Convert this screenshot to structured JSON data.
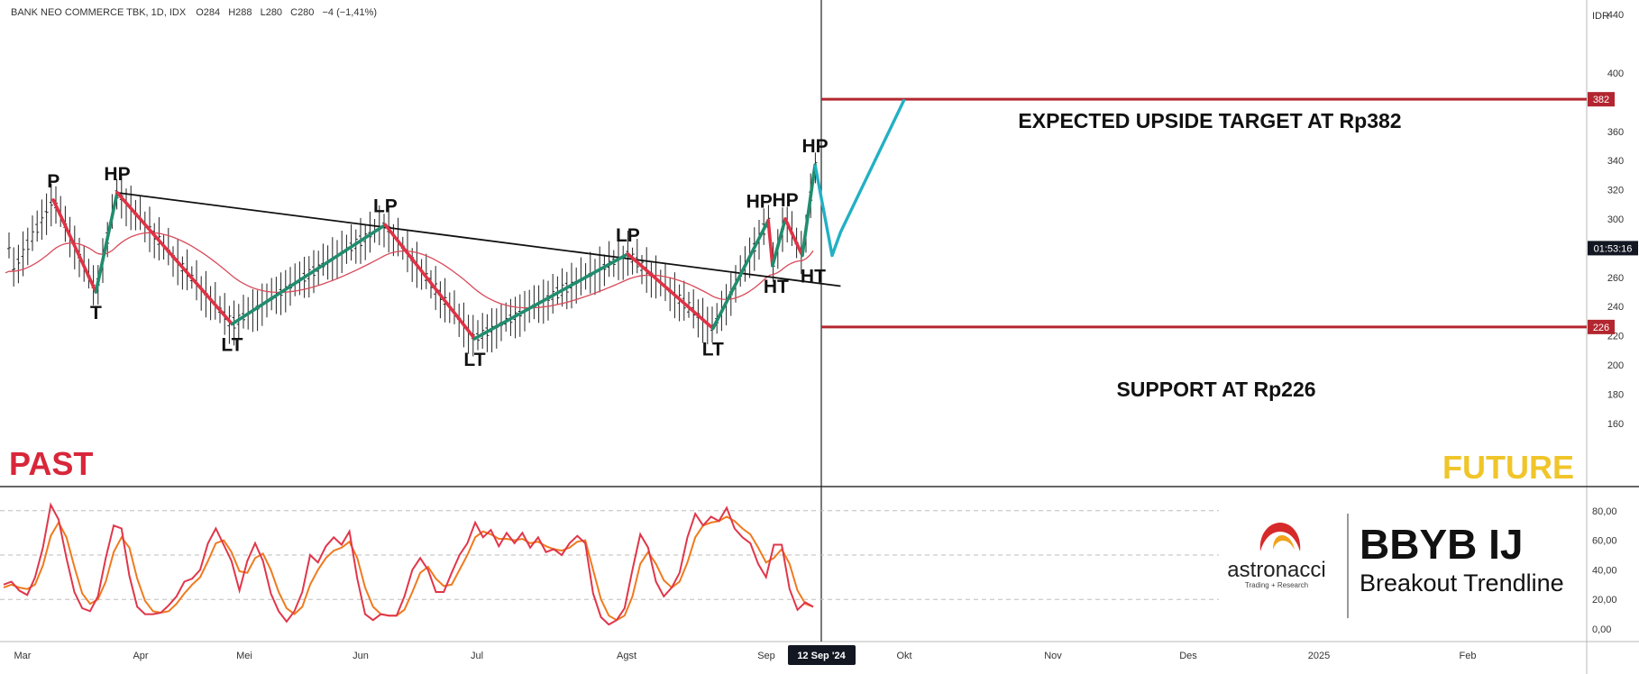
{
  "header": {
    "symbol_info": "BANK NEO COMMERCE TBK, 1D, IDX",
    "open": "O284",
    "high": "H288",
    "low": "L280",
    "close": "C280",
    "change": "−4 (−1,41%)"
  },
  "currency": "IDR",
  "countdown": "01:53:16",
  "current_date_badge": "12 Sep '24",
  "colors": {
    "up_wave": "#218c6e",
    "down_wave": "#e03245",
    "projection": "#22b0c4",
    "level_line": "#b3262f",
    "ma": "#d94a5a",
    "past": "#d8263a",
    "future": "#f0c52a",
    "stoch_k": "#e0364a",
    "stoch_d": "#f07a1e"
  },
  "annotations": {
    "target_label": "EXPECTED UPSIDE TARGET AT Rp382",
    "support_label": "SUPPORT AT Rp226",
    "past": "PAST",
    "future": "FUTURE"
  },
  "branding": {
    "logo_name": "astronacci",
    "tagline": "Trading + Research",
    "ticker": "BBYB IJ",
    "setup": "Breakout Trendline"
  },
  "chart_data": [
    {
      "type": "candlestick",
      "title": "BANK NEO COMMERCE TBK, 1D, IDX",
      "yaxis": {
        "ticks": [
          160,
          180,
          200,
          220,
          240,
          260,
          280,
          300,
          320,
          340,
          360,
          400,
          440
        ],
        "ylim": [
          140,
          460
        ],
        "label": "IDR"
      },
      "xaxis": {
        "ticks": [
          "Mar",
          "Apr",
          "Mei",
          "Jun",
          "Jul",
          "Agst",
          "Sep",
          "Okt",
          "Nov",
          "Des",
          "2025",
          "Feb"
        ]
      },
      "levels": [
        {
          "label": "382",
          "value": 382
        },
        {
          "label": "226",
          "value": 226
        }
      ],
      "price_badge": {
        "label": "01:53:16",
        "value": 280
      },
      "trendline": {
        "from": {
          "x": "Mar 26 2024",
          "y": 318
        },
        "to": {
          "x": "Sep 12 2024",
          "y": 254
        }
      },
      "waves": [
        {
          "label": "P",
          "date": "Mar 11 2024",
          "value": 313,
          "type": "peak"
        },
        {
          "label": "T",
          "date": "Mar 21 2024",
          "value": 250,
          "type": "trough"
        },
        {
          "label": "HP",
          "date": "Mar 26 2024",
          "value": 318,
          "type": "peak"
        },
        {
          "label": "LT",
          "date": "Apr 22 2024",
          "value": 228,
          "type": "trough"
        },
        {
          "label": "LP",
          "date": "May 28 2024",
          "value": 296,
          "type": "peak"
        },
        {
          "label": "LT",
          "date": "Jun 18 2024",
          "value": 218,
          "type": "trough"
        },
        {
          "label": "LP",
          "date": "Jul 24 2024",
          "value": 276,
          "type": "peak"
        },
        {
          "label": "LT",
          "date": "Aug 13 2024",
          "value": 225,
          "type": "trough"
        },
        {
          "label": "HP",
          "date": "Aug 26 2024",
          "value": 299,
          "type": "peak"
        },
        {
          "label": "HT",
          "date": "Aug 27 2024",
          "value": 268,
          "type": "trough"
        },
        {
          "label": "HP",
          "date": "Aug 30 2024",
          "value": 300,
          "type": "peak"
        },
        {
          "label": "HT",
          "date": "Sep 03 2024",
          "value": 275,
          "type": "trough"
        },
        {
          "label": "HP",
          "date": "Sep 06 2024",
          "value": 337,
          "type": "peak"
        }
      ],
      "projection": [
        {
          "date": "Sep 06 2024",
          "value": 337
        },
        {
          "date": "Sep 10 2024",
          "value": 275
        },
        {
          "date": "Sep 12 2024",
          "value": 291
        },
        {
          "date": "Sep 27 2024",
          "value": 382
        }
      ]
    },
    {
      "type": "line",
      "title": "",
      "yaxis": {
        "ticks": [
          "0,00",
          "20,00",
          "40,00",
          "60,00",
          "80,00"
        ],
        "ylim": [
          -8,
          92
        ]
      },
      "levels": [
        80,
        50,
        20
      ],
      "series": [
        {
          "values": [
            30,
            32,
            26,
            23,
            35,
            55,
            84,
            74,
            48,
            25,
            14,
            12,
            22,
            48,
            70,
            68,
            36,
            15,
            10,
            10,
            11,
            16,
            22,
            32,
            34,
            40,
            58,
            68,
            57,
            46,
            26,
            46,
            58,
            46,
            24,
            12,
            5,
            12,
            25,
            50,
            45,
            56,
            62,
            57,
            66,
            34,
            10,
            6,
            10,
            9,
            9,
            22,
            40,
            48,
            40,
            25,
            25,
            38,
            50,
            58,
            72,
            62,
            67,
            56,
            65,
            58,
            65,
            55,
            62,
            52,
            54,
            50,
            58,
            63,
            58,
            24,
            8,
            3,
            6,
            14,
            40,
            64,
            55,
            32,
            22,
            28,
            38,
            62,
            78,
            70,
            76,
            73,
            82,
            68,
            62,
            58,
            44,
            35,
            57,
            57,
            27,
            13,
            18,
            15
          ]
        },
        {
          "values": [
            28,
            30,
            28,
            27,
            30,
            43,
            63,
            72,
            62,
            42,
            24,
            17,
            20,
            32,
            52,
            62,
            55,
            34,
            19,
            12,
            11,
            12,
            17,
            24,
            30,
            35,
            46,
            58,
            60,
            52,
            39,
            38,
            48,
            51,
            40,
            25,
            14,
            10,
            15,
            30,
            40,
            48,
            53,
            55,
            59,
            48,
            28,
            15,
            10,
            9,
            9,
            13,
            25,
            38,
            42,
            34,
            29,
            30,
            40,
            50,
            62,
            66,
            64,
            61,
            61,
            60,
            61,
            58,
            59,
            56,
            54,
            53,
            55,
            59,
            60,
            40,
            20,
            9,
            6,
            9,
            22,
            44,
            52,
            44,
            33,
            28,
            32,
            45,
            62,
            70,
            72,
            73,
            76,
            73,
            68,
            64,
            55,
            45,
            48,
            54,
            44,
            26,
            17,
            15
          ]
        }
      ]
    }
  ]
}
